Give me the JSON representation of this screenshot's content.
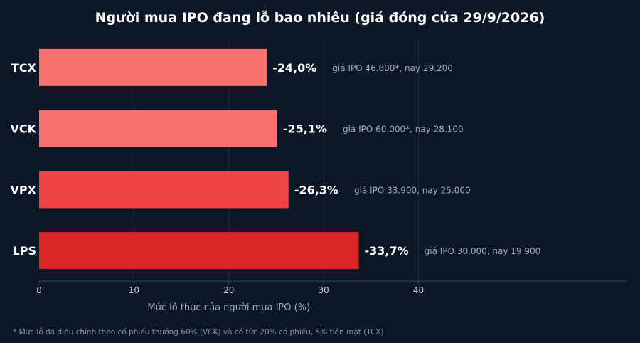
{
  "chart_data": {
    "type": "bar",
    "orientation": "horizontal",
    "title": "Người mua IPO đang lỗ bao nhiêu (giá đóng cửa 29/9/2026)",
    "xlabel": "Mức lỗ thực của người mua IPO (%)",
    "ylabel": "",
    "xlim": [
      0,
      62
    ],
    "xticks": [
      0,
      10,
      20,
      30,
      40
    ],
    "grid": true,
    "categories": [
      "TCX",
      "VCK",
      "VPX",
      "LPS"
    ],
    "values": [
      24.0,
      25.1,
      26.3,
      33.7
    ],
    "value_labels": [
      "-24,0%",
      "-25,1%",
      "-26,3%",
      "-33,7%"
    ],
    "annotations": [
      "giá IPO 46.800*, nay 29.200",
      "giá IPO 60.000*, nay 28.100",
      "giá IPO 33.900, nay 25.000",
      "giá IPO 30.000, nay 19.900"
    ],
    "bar_colors": [
      "#f87171",
      "#f87171",
      "#ef4444",
      "#dc2626"
    ],
    "footnote": "* Mức lỗ đã điều chỉnh theo cổ phiếu thưởng 60% (VCK) và cổ tức 20% cổ phiếu, 5% tiền mặt (TCX)"
  },
  "colors": {
    "background": "#0e1726",
    "grid": "#1f2a3b",
    "axis": "#3a4556",
    "tick_text": "#c8ced8",
    "annotation_text": "#a3acb9",
    "value_text": "#ffffff"
  }
}
